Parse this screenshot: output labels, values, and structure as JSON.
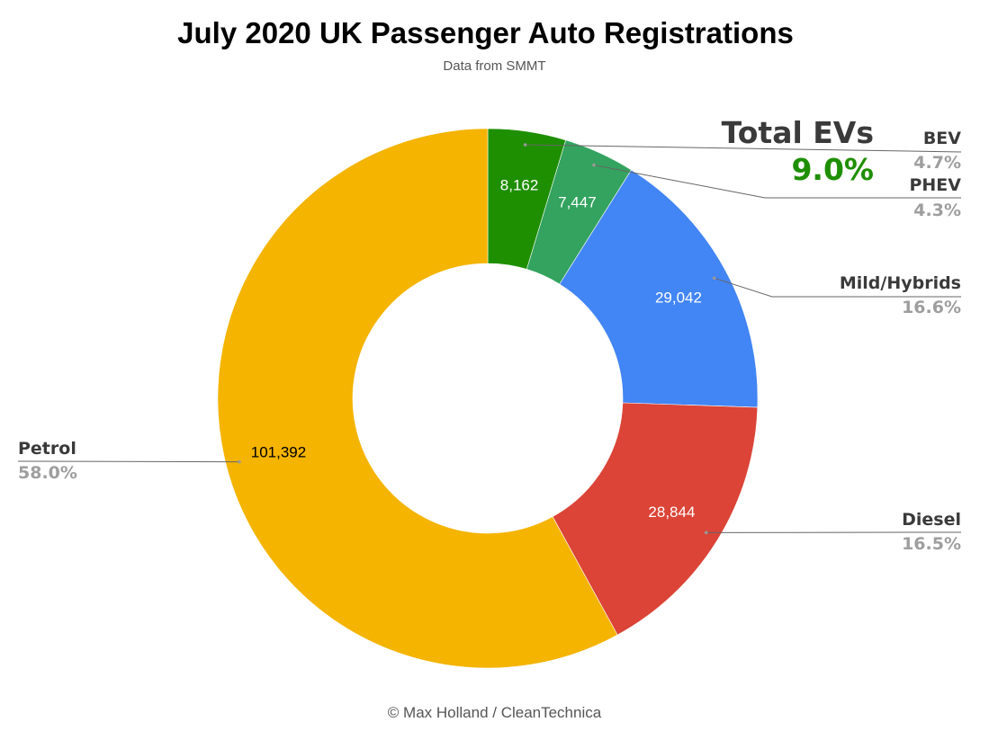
{
  "chart_data": {
    "type": "pie",
    "donut": true,
    "title": "July 2020 UK Passenger Auto Registrations",
    "subtitle": "Data from SMMT",
    "footer": "© Max Holland / CleanTechnica",
    "annotation": {
      "label": "Total EVs",
      "value": "9.0%"
    },
    "slices": [
      {
        "name": "BEV",
        "value": 8162,
        "value_label": "8,162",
        "percent": "4.7%",
        "color": "#1e8f00",
        "text_color": "#ffffff"
      },
      {
        "name": "PHEV",
        "value": 7447,
        "value_label": "7,447",
        "percent": "4.3%",
        "color": "#33a35f",
        "text_color": "#ffffff"
      },
      {
        "name": "Mild/Hybrids",
        "value": 29042,
        "value_label": "29,042",
        "percent": "16.6%",
        "color": "#4285f4",
        "text_color": "#ffffff"
      },
      {
        "name": "Diesel",
        "value": 28844,
        "value_label": "28,844",
        "percent": "16.5%",
        "color": "#db4437",
        "text_color": "#ffffff"
      },
      {
        "name": "Petrol",
        "value": 101392,
        "value_label": "101,392",
        "percent": "58.0%",
        "color": "#f4b400",
        "text_color": "#000000"
      }
    ]
  }
}
